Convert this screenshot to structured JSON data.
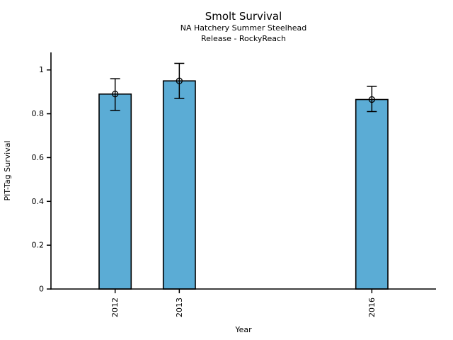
{
  "chart_data": {
    "type": "bar",
    "title": "Smolt Survival",
    "subtitle_line1": "NA Hatchery Summer Steelhead",
    "subtitle_line2": "Release - RockyReach",
    "xlabel": "Year",
    "ylabel": "PIT-Tag Survival",
    "categories": [
      "2012",
      "2013",
      "2016"
    ],
    "x_numeric": [
      2012,
      2013,
      2016
    ],
    "values": [
      0.89,
      0.95,
      0.865
    ],
    "error_low": [
      0.815,
      0.87,
      0.81
    ],
    "error_high": [
      0.96,
      1.03,
      0.925
    ],
    "y_ticks": [
      0,
      0.2,
      0.4,
      0.6,
      0.8,
      1
    ],
    "y_tick_labels": [
      "0",
      "0.2",
      "0.4",
      "0.6",
      "0.8",
      "1"
    ],
    "xlim": [
      2011,
      2017
    ],
    "ylim": [
      0,
      1.08
    ],
    "bar_width_years": 0.5,
    "grid": false,
    "legend": "none",
    "marker": "open-circle",
    "colors": {
      "bar_fill": "#5BACD5",
      "bar_edge": "#000000",
      "error_bar": "#000000",
      "axis": "#000000",
      "text": "#000000",
      "background": "#ffffff"
    }
  }
}
